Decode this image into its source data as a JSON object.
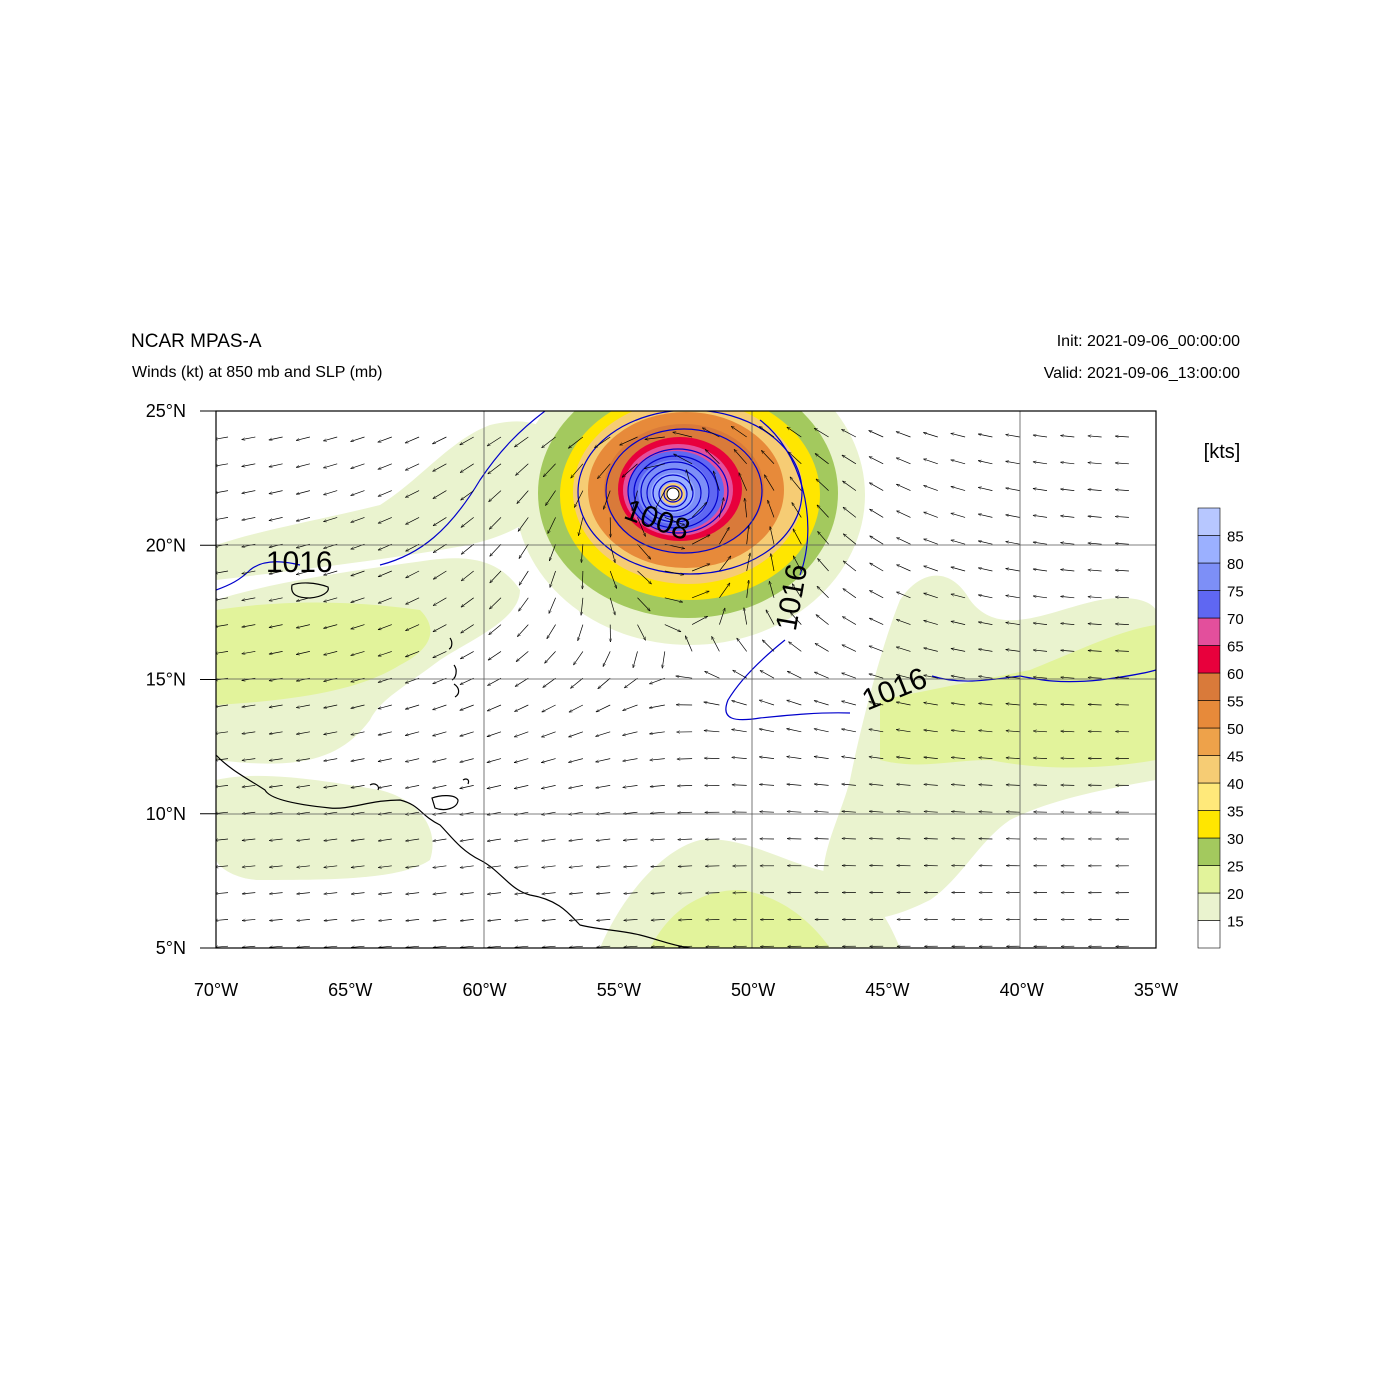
{
  "header": {
    "model": "NCAR MPAS-A",
    "field": "Winds (kt) at 850 mb and SLP (mb)",
    "init": "Init: 2021-09-06_00:00:00",
    "valid": "Valid: 2021-09-06_13:00:00"
  },
  "map": {
    "lon_range": [
      -70,
      -35
    ],
    "lat_range": [
      5,
      25
    ],
    "lon_ticks": [
      {
        "value": -70,
        "label": "70°W"
      },
      {
        "value": -65,
        "label": "65°W"
      },
      {
        "value": -60,
        "label": "60°W"
      },
      {
        "value": -55,
        "label": "55°W"
      },
      {
        "value": -50,
        "label": "50°W"
      },
      {
        "value": -45,
        "label": "45°W"
      },
      {
        "value": -40,
        "label": "40°W"
      },
      {
        "value": -35,
        "label": "35°W"
      }
    ],
    "lat_ticks": [
      {
        "value": 25,
        "label": "25°N"
      },
      {
        "value": 20,
        "label": "20°N"
      },
      {
        "value": 15,
        "label": "15°N"
      },
      {
        "value": 10,
        "label": "10°N"
      },
      {
        "value": 5,
        "label": "5°N"
      }
    ],
    "grid": true,
    "storm_center": {
      "lon": -53.0,
      "lat": 21.9
    },
    "slp_contour_labels": [
      {
        "text": "1016",
        "lon": -66.9,
        "lat": 19.0,
        "angle": 0
      },
      {
        "text": "1008",
        "lon": -53.7,
        "lat": 20.6,
        "angle": 20
      },
      {
        "text": "1016",
        "lon": -48.2,
        "lat": 18.0,
        "angle": -80
      },
      {
        "text": "1016",
        "lon": -44.6,
        "lat": 14.3,
        "angle": -22
      }
    ],
    "land_color": "#ffffff",
    "coast_color": "#000000",
    "contour_color": "#0000cc"
  },
  "colorbar": {
    "units": "[kts]",
    "levels": [
      "15",
      "20",
      "25",
      "30",
      "35",
      "40",
      "45",
      "50",
      "55",
      "60",
      "65",
      "70",
      "75",
      "80",
      "85"
    ],
    "colors": [
      "#ffffff",
      "#eaf3cf",
      "#e2f39b",
      "#a3c95e",
      "#ffe600",
      "#ffe97a",
      "#f6cc74",
      "#eea24a",
      "#e78a3a",
      "#d97a3a",
      "#e8003c",
      "#e34f9c",
      "#5f67f2",
      "#7d8ff7",
      "#9bb0ff",
      "#b7c7ff"
    ]
  }
}
